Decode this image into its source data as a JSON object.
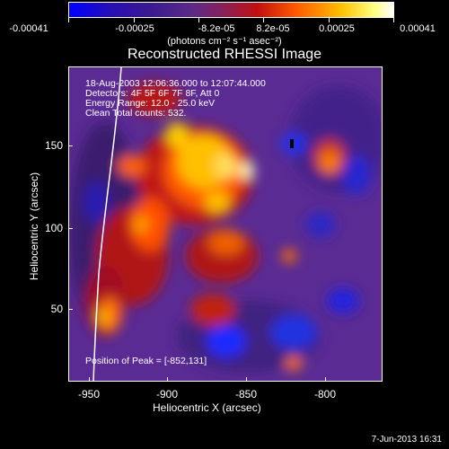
{
  "colorbar": {
    "ticks": [
      "-0.00041",
      "-0.00025",
      "-8.2e-05",
      "8.2e-05",
      "0.00025",
      "0.00041"
    ],
    "units": "(photons cm⁻² s⁻¹ asec⁻²)",
    "colors": {
      "low": "#0000ff",
      "mid": "#5b2a8a",
      "high": "#ffffff"
    }
  },
  "title": "Reconstructed RHESSI Image",
  "annotations": [
    "18-Aug-2003 12:06:36.000 to 12:07:44.000",
    "Detectors: 4F 5F 6F 7F 8F, Att 0",
    "Energy Range: 12.0 - 25.0 keV",
    "Clean    Total counts: 532.",
    "Position of Peak = [-852,131]"
  ],
  "axes": {
    "xlabel": "Heliocentric X (arcsec)",
    "ylabel": "Heliocentric Y (arcsec)",
    "xticks": [
      "-950",
      "-900",
      "-850",
      "-800"
    ],
    "yticks": [
      "150",
      "100",
      "50"
    ]
  },
  "timestamp": "7-Jun-2013 16:31"
}
